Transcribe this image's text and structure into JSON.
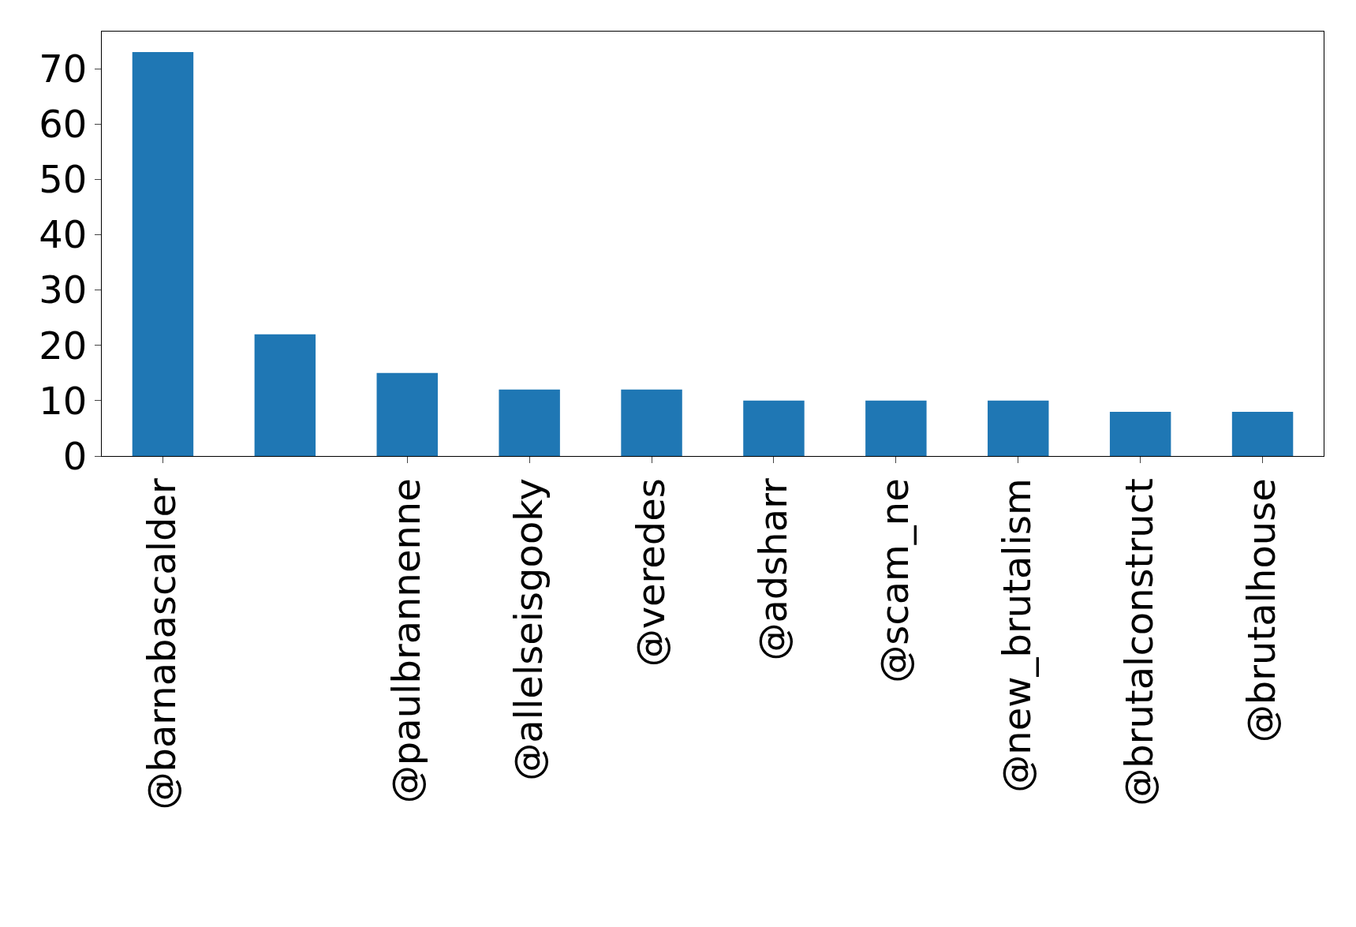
{
  "chart_data": {
    "type": "bar",
    "categories": [
      "@barnabascalder",
      null,
      "@paulbrannenne",
      "@allelseisgooky",
      "@veredes",
      "@adsharr",
      "@scam_ne",
      "@new_brutalism",
      "@brutalconstruct",
      "@brutalhouse"
    ],
    "values": [
      73,
      22,
      15,
      12,
      12,
      10,
      10,
      10,
      8,
      8
    ],
    "color": "#1f77b4",
    "ylim": [
      0,
      76.7
    ],
    "yticks": [
      0,
      10,
      20,
      30,
      40,
      50,
      60,
      70
    ],
    "grid": false
  }
}
